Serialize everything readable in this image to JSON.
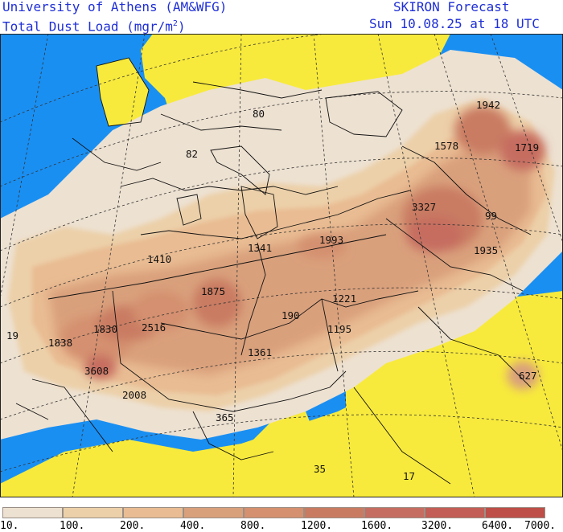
{
  "header": {
    "org": "University of Athens (AM&WFG)",
    "field": "Total Dust Load (mgr/m",
    "field_exp": "2",
    "field_close": ")",
    "product": "SKIRON Forecast",
    "valid_time": "Sun 10.08.25 at 18 UTC"
  },
  "map": {
    "value_labels": [
      "1942",
      "1578",
      "1719",
      "80",
      "82",
      "3327",
      "99",
      "1341",
      "1993",
      "1935",
      "1410",
      "1875",
      "1221",
      "190",
      "19",
      "1830",
      "2516",
      "1195",
      "1838",
      "1361",
      "3608",
      "627",
      "2008",
      "365",
      "35",
      "17"
    ]
  },
  "colorbar": {
    "colors": [
      "#ede1d1",
      "#ecd0a9",
      "#e9bc93",
      "#d9a07c",
      "#d4906f",
      "#c97b62",
      "#c66d61",
      "#c25e55",
      "#bd4f48"
    ],
    "ticks": [
      "10.",
      "100.",
      "200.",
      "400.",
      "800.",
      "1200.",
      "1600.",
      "3200.",
      "6400.",
      "7000."
    ]
  },
  "colors": {
    "land_no_dust": "#f8ea3c",
    "sea": "#1a8ff2",
    "header_text": "#1f2fd6"
  }
}
